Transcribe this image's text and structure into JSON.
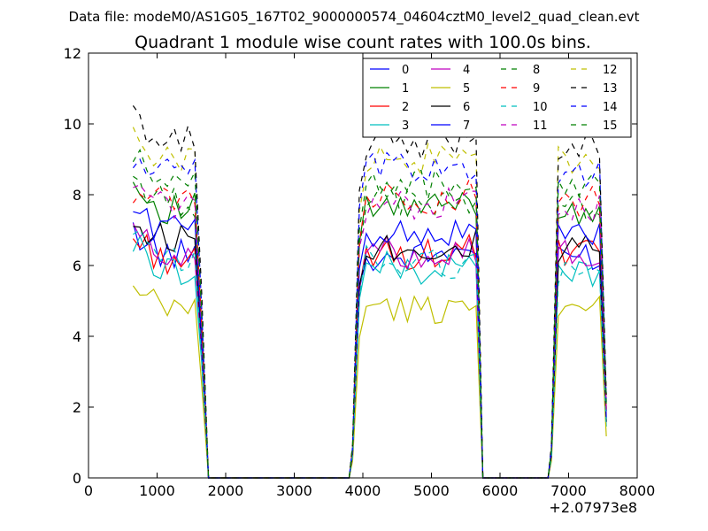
{
  "chart_data": {
    "type": "line",
    "suptitle": "Data file: modeM0/AS1G05_167T02_9000000574_04604cztM0_level2_quad_clean.evt",
    "title": "Quadrant 1 module wise count rates with 100.0s bins.",
    "xlabel": "",
    "ylabel": "",
    "x_offset_label": "+2.07973e8",
    "xlim": [
      0,
      8000
    ],
    "ylim": [
      0,
      12
    ],
    "x_ticks": [
      0,
      1000,
      2000,
      3000,
      4000,
      5000,
      6000,
      7000,
      8000
    ],
    "x_tick_labels": [
      "0",
      "1000",
      "2000",
      "3000",
      "4000",
      "5000",
      "6000",
      "7000",
      "8000"
    ],
    "y_ticks": [
      0,
      2,
      4,
      6,
      8,
      10,
      12
    ],
    "y_tick_labels": [
      "0",
      "2",
      "4",
      "6",
      "8",
      "10",
      "12"
    ],
    "legend": {
      "location": "top-right",
      "columns": 4
    },
    "segments": [
      {
        "x_start": 650,
        "x_step": 100,
        "count": 11
      },
      {
        "x_start": 3850,
        "x_step": 100,
        "count": 19
      },
      {
        "x_start": 6750,
        "x_step": 100,
        "count": 9
      }
    ],
    "series": [
      {
        "name": "0",
        "color": "#0000ff",
        "style": "solid",
        "levels": [
          7.0,
          6.3,
          6.2,
          6.3
        ]
      },
      {
        "name": "1",
        "color": "#008000",
        "style": "solid",
        "levels": [
          8.3,
          7.6,
          7.6,
          7.6
        ]
      },
      {
        "name": "2",
        "color": "#ff0000",
        "style": "solid",
        "levels": [
          6.8,
          6.2,
          6.3,
          6.3
        ]
      },
      {
        "name": "3",
        "color": "#00bfbf",
        "style": "solid",
        "levels": [
          6.6,
          5.9,
          6.0,
          5.8
        ]
      },
      {
        "name": "4",
        "color": "#bf00bf",
        "style": "solid",
        "levels": [
          6.9,
          6.4,
          6.4,
          6.3
        ]
      },
      {
        "name": "5",
        "color": "#bfbf00",
        "style": "solid",
        "levels": [
          5.2,
          4.8,
          4.8,
          4.7
        ]
      },
      {
        "name": "6",
        "color": "#000000",
        "style": "solid",
        "levels": [
          7.1,
          6.8,
          6.6,
          6.4
        ]
      },
      {
        "name": "7",
        "color": "#0000ff",
        "style": "solid",
        "levels": [
          7.5,
          7.1,
          7.0,
          6.8
        ]
      },
      {
        "name": "8",
        "color": "#008000",
        "style": "dashed",
        "levels": [
          8.5,
          7.8,
          7.9,
          7.7
        ]
      },
      {
        "name": "9",
        "color": "#ff0000",
        "style": "dashed",
        "levels": [
          8.2,
          7.9,
          8.0,
          7.8
        ]
      },
      {
        "name": "10",
        "color": "#00bfbf",
        "style": "dashed",
        "levels": [
          6.8,
          6.1,
          6.2,
          5.9
        ]
      },
      {
        "name": "11",
        "color": "#bf00bf",
        "style": "dashed",
        "levels": [
          8.1,
          7.7,
          7.8,
          7.6
        ]
      },
      {
        "name": "12",
        "color": "#bfbf00",
        "style": "dashed",
        "levels": [
          10.0,
          9.0,
          9.0,
          9.0
        ]
      },
      {
        "name": "13",
        "color": "#000000",
        "style": "dashed",
        "levels": [
          10.2,
          9.5,
          9.5,
          9.4
        ]
      },
      {
        "name": "14",
        "color": "#0000ff",
        "style": "dashed",
        "levels": [
          8.9,
          8.7,
          8.8,
          8.6
        ]
      },
      {
        "name": "15",
        "color": "#008000",
        "style": "dashed",
        "levels": [
          9.0,
          8.4,
          8.4,
          8.2
        ]
      }
    ]
  }
}
